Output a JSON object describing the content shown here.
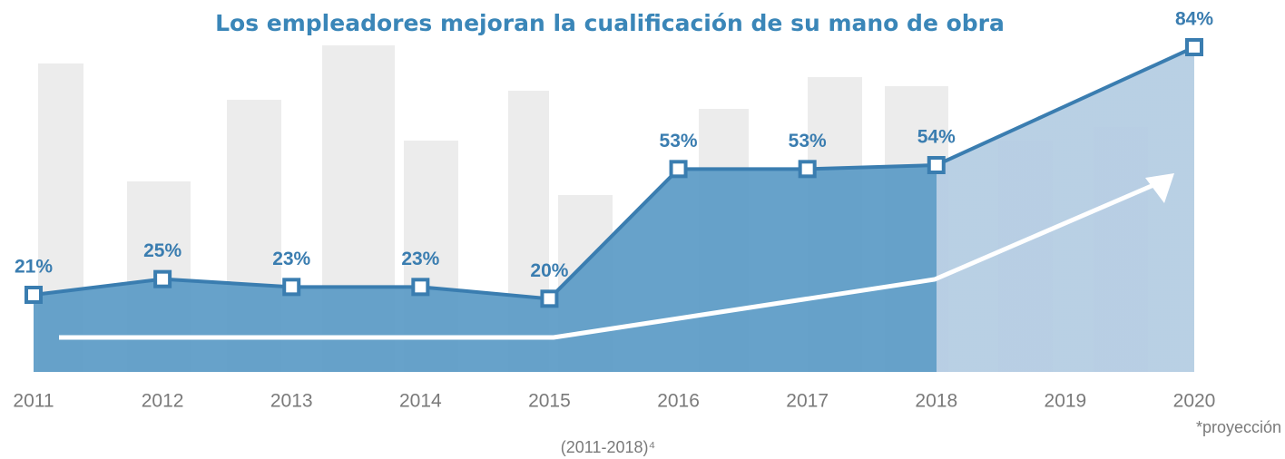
{
  "chart_data": {
    "type": "area",
    "title": "Los empleadores mejoran la cualificación de su mano de obra",
    "x": [
      2011,
      2012,
      2013,
      2014,
      2015,
      2016,
      2017,
      2018,
      2020
    ],
    "values": [
      21,
      25,
      23,
      23,
      20,
      53,
      53,
      54,
      84
    ],
    "value_labels": [
      "21%",
      "25%",
      "23%",
      "23%",
      "20%",
      "53%",
      "53%",
      "54%",
      "84%"
    ],
    "xlim": [
      2011,
      2020
    ],
    "xticks": [
      2011,
      2012,
      2013,
      2014,
      2015,
      2016,
      2017,
      2018,
      2019,
      2020
    ],
    "ylim": [
      0,
      90
    ],
    "color": "#3a7db0",
    "fill_color": "#5f9dc7",
    "projection_fill_color": "#b5cde3",
    "annotations": [
      "*proyección",
      "(2011-2018)⁴"
    ]
  }
}
